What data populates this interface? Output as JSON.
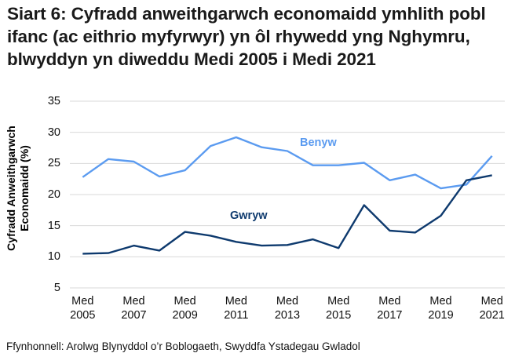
{
  "title": "Siart 6: Cyfradd anweithgarwch economaidd ymhlith pobl ifanc (ac eithrio myfyrwyr) yn ôl rhywedd yng Nghymru, blwyddyn yn diweddu Medi 2005 i Medi 2021",
  "source": "Ffynhonnell: Arolwg Blynyddol o’r Boblogaeth, Swyddfa Ystadegau Gwladol",
  "colors": {
    "benyw": "#5B9BF0",
    "gwryw": "#0E3A6E",
    "grid": "#d9d9d9"
  },
  "chart_data": {
    "type": "line",
    "title": "Siart 6: Cyfradd anweithgarwch economaidd ymhlith pobl ifanc (ac eithrio myfyrwyr) yn ôl rhywedd yng Nghymru, blwyddyn yn diweddu Medi 2005 i Medi 2021",
    "xlabel": "",
    "ylabel": "Cyfradd Anweithgarwch Economaidd (%)",
    "ylim": [
      5,
      35
    ],
    "yticks": [
      5,
      10,
      15,
      20,
      25,
      30,
      35
    ],
    "grid": true,
    "legend_position": "inline labels",
    "categories": [
      "Med 2005",
      "Med 2006",
      "Med 2007",
      "Med 2008",
      "Med 2009",
      "Med 2010",
      "Med 2011",
      "Med 2012",
      "Med 2013",
      "Med 2014",
      "Med 2015",
      "Med 2016",
      "Med 2017",
      "Med 2018",
      "Med 2019",
      "Med 2020",
      "Med 2021"
    ],
    "xtick_labels": [
      {
        "line1": "Med",
        "line2": "2005"
      },
      {
        "line1": "Med",
        "line2": "2007"
      },
      {
        "line1": "Med",
        "line2": "2009"
      },
      {
        "line1": "Med",
        "line2": "2011"
      },
      {
        "line1": "Med",
        "line2": "2013"
      },
      {
        "line1": "Med",
        "line2": "2015"
      },
      {
        "line1": "Med",
        "line2": "2017"
      },
      {
        "line1": "Med",
        "line2": "2019"
      },
      {
        "line1": "Med",
        "line2": "2021"
      }
    ],
    "series": [
      {
        "name": "Benyw",
        "values": [
          22.8,
          25.7,
          25.3,
          22.9,
          23.9,
          27.8,
          29.2,
          27.6,
          27.0,
          24.7,
          24.7,
          25.1,
          22.3,
          23.2,
          21.0,
          21.6,
          26.2
        ]
      },
      {
        "name": "Gwryw",
        "values": [
          10.5,
          10.6,
          11.8,
          11.0,
          14.0,
          13.4,
          12.4,
          11.8,
          11.9,
          12.8,
          11.4,
          18.3,
          14.2,
          13.9,
          16.6,
          22.3,
          23.1
        ]
      }
    ]
  }
}
